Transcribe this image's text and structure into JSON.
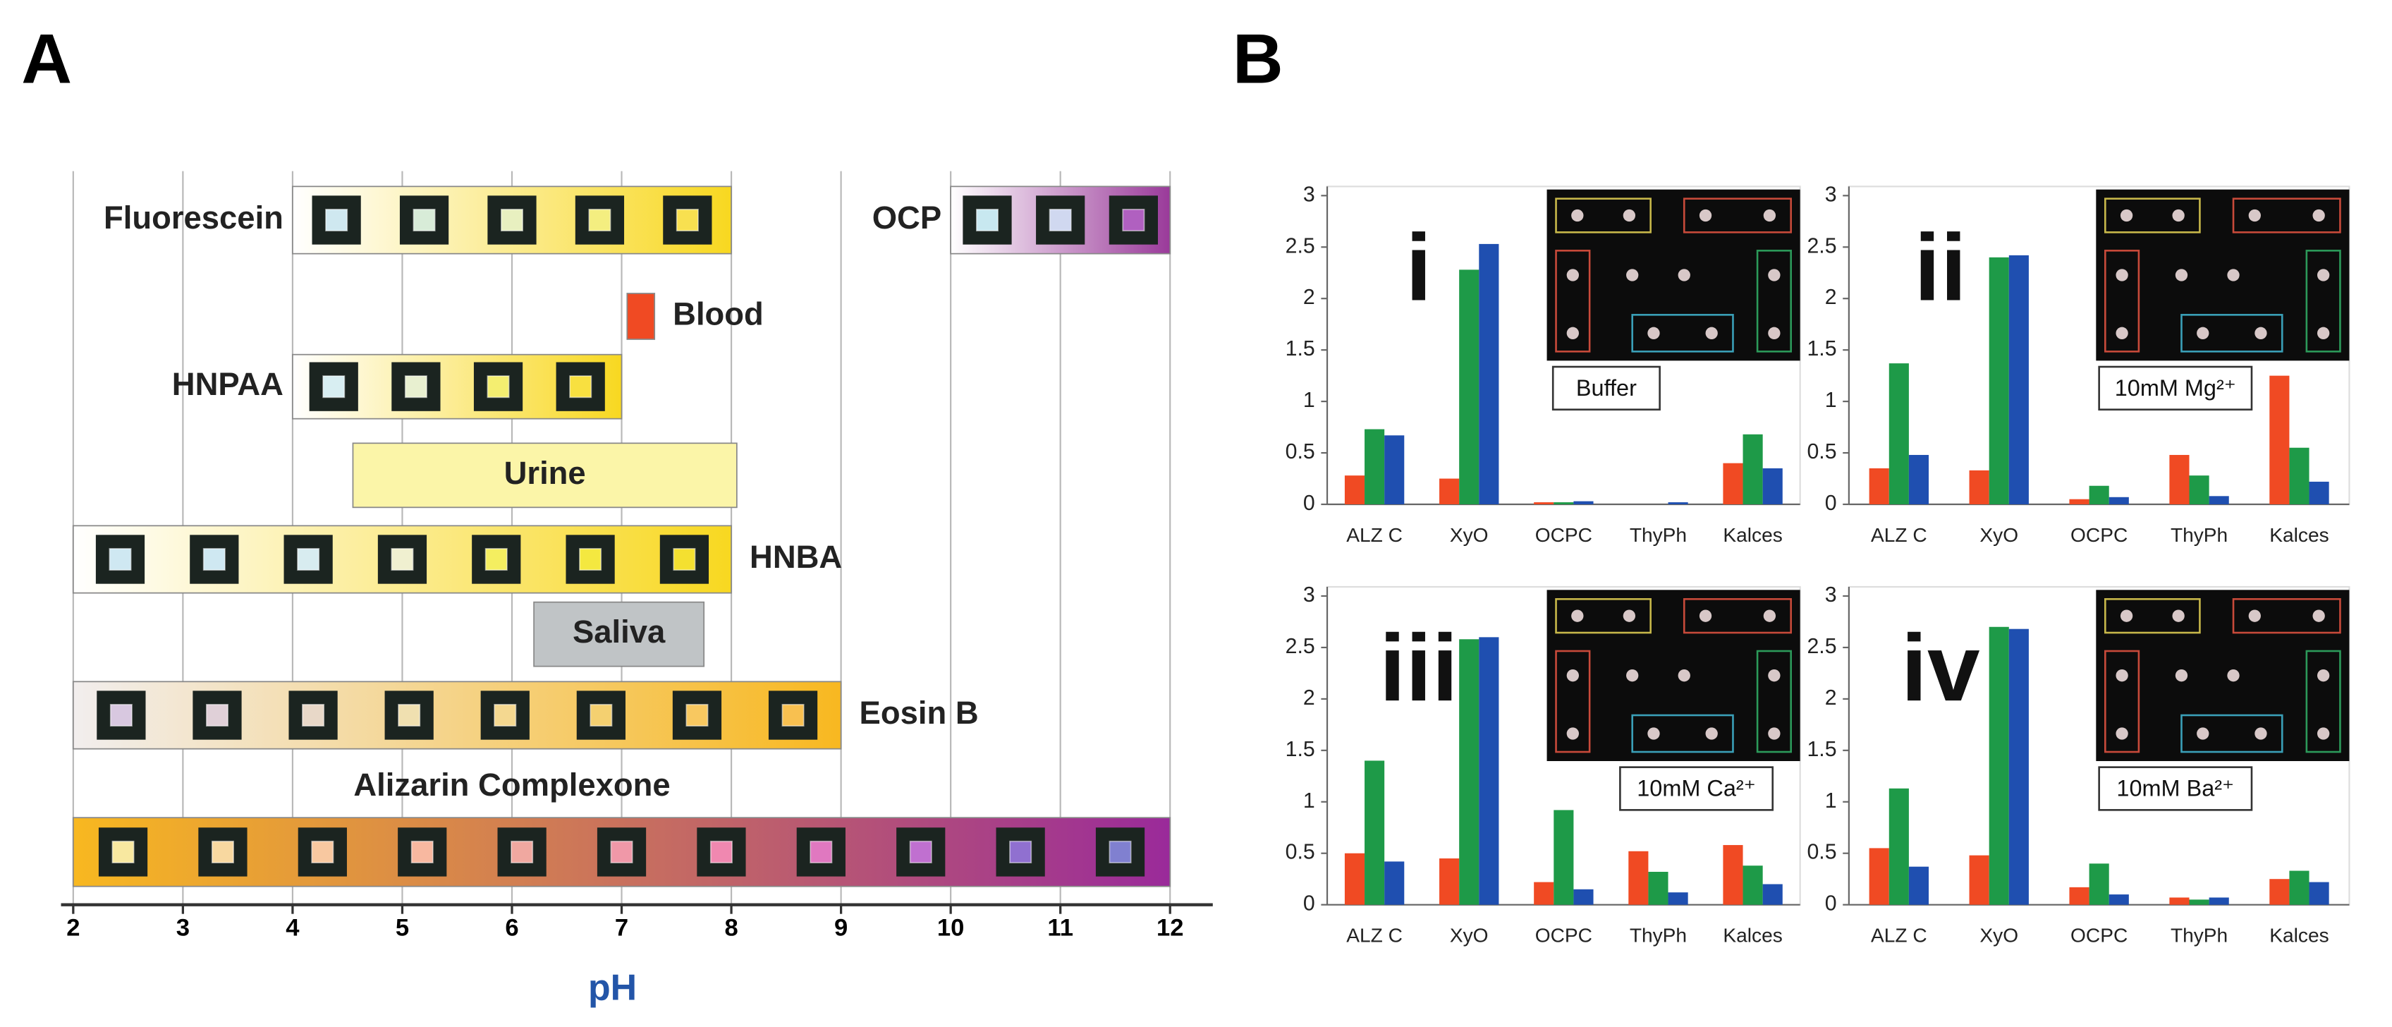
{
  "panel_labels": [
    "A",
    "B"
  ],
  "chart_data": [
    {
      "type": "range",
      "xlabel": "pH",
      "xlim": [
        2,
        12
      ],
      "xticks": [
        2,
        3,
        4,
        5,
        6,
        7,
        8,
        9,
        10,
        11,
        12
      ],
      "grid": true,
      "ranges": [
        {
          "name": "Fluorescein",
          "start": 4,
          "end": 8,
          "colors": [
            "#ffffff",
            "#f8d820"
          ],
          "swatches": [
            "#cfe8f0",
            "#d8ecd8",
            "#e8f0c0",
            "#f4ee80",
            "#f8e050"
          ]
        },
        {
          "name": "OCP",
          "start": 10,
          "end": 12,
          "colors": [
            "#ffffff",
            "#9a3a9a"
          ],
          "swatches": [
            "#c8e8f0",
            "#d0d8f0",
            "#b060c0"
          ]
        },
        {
          "name": "Blood",
          "start": 7.05,
          "end": 7.3,
          "colors": [
            "#f04a23",
            "#f04a23"
          ],
          "swatches": []
        },
        {
          "name": "HNPAA",
          "start": 4,
          "end": 7,
          "colors": [
            "#ffffff",
            "#f8d820"
          ],
          "swatches": [
            "#d8eef2",
            "#e8f0d0",
            "#f4ee70",
            "#f8e040"
          ]
        },
        {
          "name": "Urine",
          "start": 4.55,
          "end": 8.05,
          "colors": [
            "#fbf5a8",
            "#fbf5a8"
          ],
          "swatches": []
        },
        {
          "name": "HNBA",
          "start": 2,
          "end": 8,
          "colors": [
            "#ffffff",
            "#f8d820"
          ],
          "swatches": [
            "#cfe8f2",
            "#cfe8f2",
            "#d8ecf0",
            "#f0f0d0",
            "#f4ee60",
            "#f4e840",
            "#f4e030"
          ]
        },
        {
          "name": "Saliva",
          "start": 6.2,
          "end": 7.75,
          "colors": [
            "#c0c4c6",
            "#c0c4c6"
          ],
          "swatches": []
        },
        {
          "name": "Eosin B",
          "start": 2,
          "end": 9,
          "colors": [
            "#f2eeee",
            "#f8b820"
          ],
          "swatches": [
            "#d8c8e0",
            "#e0d0d8",
            "#e8d8c8",
            "#f0e0b0",
            "#f4d890",
            "#f4d070",
            "#f8c860",
            "#f8c050"
          ]
        },
        {
          "name": "Alizarin Complexone",
          "start": 2,
          "end": 12,
          "colors": [
            "#f8b820",
            "#9a2a9a"
          ],
          "swatches": [
            "#f8e8a0",
            "#f8d8a0",
            "#f8c8a0",
            "#f8b8a0",
            "#f0a8a0",
            "#f098a8",
            "#f088b0",
            "#e078c0",
            "#c070d0",
            "#9070d0",
            "#8080d0"
          ]
        }
      ]
    },
    {
      "type": "bar",
      "label": "i",
      "condition": "Buffer",
      "categories": [
        "ALZ C",
        "XyO",
        "OCPC",
        "ThyPh",
        "Kalces"
      ],
      "ylim": [
        0,
        3
      ],
      "yticks": [
        0,
        0.5,
        1,
        1.5,
        2,
        2.5,
        3
      ],
      "series": [
        {
          "color": "#f04a23",
          "values": [
            0.28,
            0.25,
            0.02,
            0,
            0.4
          ]
        },
        {
          "color": "#1e9a48",
          "values": [
            0.73,
            2.28,
            0.02,
            0,
            0.68
          ]
        },
        {
          "color": "#1f4fb0",
          "values": [
            0.67,
            2.53,
            0.03,
            0.02,
            0.35
          ]
        }
      ]
    },
    {
      "type": "bar",
      "label": "ii",
      "condition": "10mM Mg²⁺",
      "categories": [
        "ALZ C",
        "XyO",
        "OCPC",
        "ThyPh",
        "Kalces"
      ],
      "ylim": [
        0,
        3
      ],
      "yticks": [
        0,
        0.5,
        1,
        1.5,
        2,
        2.5,
        3
      ],
      "series": [
        {
          "color": "#f04a23",
          "values": [
            0.35,
            0.33,
            0.05,
            0.48,
            1.25
          ]
        },
        {
          "color": "#1e9a48",
          "values": [
            1.37,
            2.4,
            0.18,
            0.28,
            0.55
          ]
        },
        {
          "color": "#1f4fb0",
          "values": [
            0.48,
            2.42,
            0.07,
            0.08,
            0.22
          ]
        }
      ]
    },
    {
      "type": "bar",
      "label": "iii",
      "condition": "10mM Ca²⁺",
      "categories": [
        "ALZ C",
        "XyO",
        "OCPC",
        "ThyPh",
        "Kalces"
      ],
      "ylim": [
        0,
        3
      ],
      "yticks": [
        0,
        0.5,
        1,
        1.5,
        2,
        2.5,
        3
      ],
      "series": [
        {
          "color": "#f04a23",
          "values": [
            0.5,
            0.45,
            0.22,
            0.52,
            0.58
          ]
        },
        {
          "color": "#1e9a48",
          "values": [
            1.4,
            2.58,
            0.92,
            0.32,
            0.38
          ]
        },
        {
          "color": "#1f4fb0",
          "values": [
            0.42,
            2.6,
            0.15,
            0.12,
            0.2
          ]
        }
      ]
    },
    {
      "type": "bar",
      "label": "iv",
      "condition": "10mM Ba²⁺",
      "categories": [
        "ALZ C",
        "XyO",
        "OCPC",
        "ThyPh",
        "Kalces"
      ],
      "ylim": [
        0,
        3
      ],
      "yticks": [
        0,
        0.5,
        1,
        1.5,
        2,
        2.5,
        3
      ],
      "series": [
        {
          "color": "#f04a23",
          "values": [
            0.55,
            0.48,
            0.17,
            0.07,
            0.25
          ]
        },
        {
          "color": "#1e9a48",
          "values": [
            1.13,
            2.7,
            0.4,
            0.05,
            0.33
          ]
        },
        {
          "color": "#1f4fb0",
          "values": [
            0.37,
            2.68,
            0.1,
            0.07,
            0.22
          ]
        }
      ]
    }
  ]
}
